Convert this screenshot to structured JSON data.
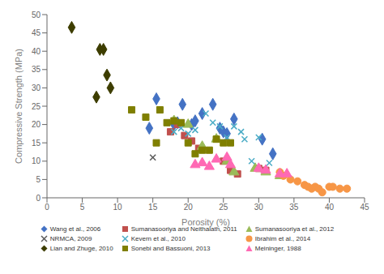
{
  "chart_data": {
    "type": "scatter",
    "xlabel": "Porosity (%)",
    "ylabel": "Compressive Strength (MPa)",
    "xlim": [
      0,
      45
    ],
    "ylim": [
      0,
      50
    ],
    "xticks": [
      0,
      5,
      10,
      15,
      20,
      25,
      30,
      35,
      40,
      45
    ],
    "yticks": [
      0,
      5,
      10,
      15,
      20,
      25,
      30,
      35,
      40,
      45,
      50
    ],
    "grid": false,
    "legend": "bottom",
    "series": [
      {
        "name": "Wang et al., 2006",
        "color": "#4472C4",
        "marker": "diamond",
        "x": [
          14.5,
          15.5,
          18.0,
          18.5,
          19.2,
          20.5,
          21.0,
          22.0,
          23.5,
          24.5,
          25.0,
          25.5,
          26.5,
          30.5,
          32.0
        ],
        "values": [
          19.0,
          27.0,
          20.0,
          20.5,
          25.5,
          20.0,
          21.0,
          23.0,
          25.5,
          19.0,
          18.0,
          17.5,
          21.5,
          16.0,
          12.0
        ]
      },
      {
        "name": "Sumanasooriya and Neithalath, 2011",
        "color": "#C0504D",
        "marker": "square",
        "x": [
          17.5,
          18.5,
          19.5,
          20.5,
          21.5,
          25.0,
          26.0,
          27.0,
          30.0,
          31.0
        ],
        "values": [
          18.0,
          20.0,
          17.0,
          15.5,
          13.5,
          10.0,
          7.5,
          6.5,
          8.0,
          7.5
        ]
      },
      {
        "name": "Sumanasooriya et al., 2012",
        "color": "#9BBB59",
        "marker": "triangle",
        "x": [
          18.0,
          20.0,
          22.0,
          24.0,
          25.5,
          26.5,
          29.5,
          31.0,
          33.0
        ],
        "values": [
          21.0,
          20.0,
          14.0,
          16.0,
          10.0,
          7.0,
          8.0,
          7.0,
          6.0
        ]
      },
      {
        "name": "NRMCA, 2009",
        "color": "#595959",
        "marker": "x",
        "x": [
          15.0
        ],
        "values": [
          11.0
        ]
      },
      {
        "name": "Kevern et al., 2010",
        "color": "#4BACC6",
        "marker": "x",
        "x": [
          18.0,
          19.0,
          20.0,
          21.0,
          22.5,
          23.5,
          24.5,
          25.5,
          26.5,
          27.5,
          28.0,
          29.0,
          30.0,
          31.5
        ],
        "values": [
          18.0,
          19.0,
          17.5,
          18.5,
          23.0,
          20.5,
          19.5,
          16.5,
          19.5,
          18.0,
          16.0,
          10.0,
          16.5,
          9.5
        ]
      },
      {
        "name": "Ibrahim et al., 2014",
        "color": "#F79646",
        "marker": "circle",
        "x": [
          33.0,
          33.5,
          34.5,
          35.5,
          36.5,
          37.0,
          37.5,
          38.0,
          38.5,
          39.0,
          40.0,
          40.5,
          41.5,
          42.5
        ],
        "values": [
          7.0,
          6.0,
          5.0,
          4.5,
          3.5,
          3.0,
          2.5,
          3.0,
          2.5,
          1.5,
          3.0,
          3.0,
          2.5,
          2.5
        ]
      },
      {
        "name": "Lian and Zhuge, 2010",
        "color": "#3D3D00",
        "marker": "diamond",
        "x": [
          3.5,
          7.0,
          7.5,
          8.0,
          8.5,
          9.0
        ],
        "values": [
          46.5,
          27.5,
          40.5,
          40.5,
          33.5,
          30.0
        ]
      },
      {
        "name": "Sonebi and Bassuoni, 2013",
        "color": "#7F7F00",
        "marker": "square",
        "x": [
          12.0,
          14.0,
          15.5,
          16.0,
          17.0,
          18.0,
          19.0,
          20.0,
          21.0,
          22.0,
          23.0,
          24.0,
          25.0,
          26.0
        ],
        "values": [
          24.0,
          22.0,
          15.0,
          24.0,
          20.5,
          21.0,
          20.5,
          15.0,
          12.0,
          13.0,
          13.0,
          16.0,
          15.0,
          15.0
        ]
      },
      {
        "name": "Meininger, 1988",
        "color": "#FF69B4",
        "marker": "triangle",
        "x": [
          21.0,
          22.0,
          23.0,
          24.0,
          25.5,
          26.0,
          30.0,
          31.0,
          33.0,
          34.0
        ],
        "values": [
          9.0,
          9.5,
          8.5,
          10.5,
          11.0,
          9.0,
          8.0,
          7.5,
          6.5,
          6.5
        ]
      }
    ]
  }
}
